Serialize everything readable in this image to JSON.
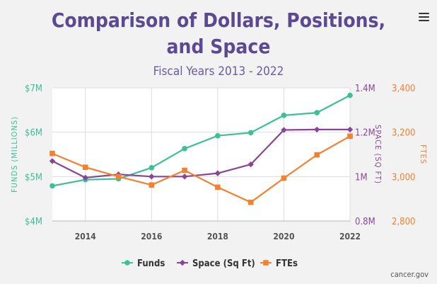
{
  "title_line1": "Comparison of Dollars, Positions,",
  "title_line2": "and Space",
  "subtitle": "Fiscal Years 2013 - 2022",
  "source": "cancer.gov",
  "menu_icon": "hamburger-menu-icon",
  "colors": {
    "funds": "#3dbf98",
    "space": "#8b4596",
    "ftes": "#f28130",
    "title": "#5b4a92",
    "subtitle": "#6a5a9e",
    "grid": "#dddddd",
    "tick": "#555555",
    "background": "#f2f2f2",
    "plot": "#ffffff"
  },
  "chart_data": {
    "type": "line",
    "title": "Comparison of Dollars, Positions, and Space",
    "subtitle": "Fiscal Years 2013 - 2022",
    "x": [
      2013,
      2014,
      2015,
      2016,
      2017,
      2018,
      2019,
      2020,
      2021,
      2022
    ],
    "x_ticks": [
      "2014",
      "2016",
      "2018",
      "2020",
      "2022"
    ],
    "axes": {
      "funds": {
        "label": "FUNDS (MILLIONS)",
        "side": "left",
        "ylim": [
          4,
          7
        ],
        "ticks": [
          4,
          5,
          6,
          7
        ],
        "tick_labels": [
          "$4M",
          "$5M",
          "$6M",
          "$7M"
        ]
      },
      "space": {
        "label": "SPACE (SQ FT)",
        "side": "right",
        "ylim": [
          0.8,
          1.4
        ],
        "ticks": [
          0.8,
          1.0,
          1.2,
          1.4
        ],
        "tick_labels": [
          "0.8M",
          "1M",
          "1.2M",
          "1.4M"
        ]
      },
      "ftes": {
        "label": "FTES",
        "side": "right-outer",
        "ylim": [
          2800,
          3400
        ],
        "ticks": [
          2800,
          3000,
          3200,
          3400
        ],
        "tick_labels": [
          "2,800",
          "3,000",
          "3,200",
          "3,400"
        ]
      }
    },
    "series": [
      {
        "name": "Funds",
        "axis": "funds",
        "marker": "circle",
        "values": [
          4.79,
          4.93,
          4.95,
          5.2,
          5.63,
          5.92,
          5.99,
          6.38,
          6.44,
          6.83
        ]
      },
      {
        "name": "Space (Sq Ft)",
        "axis": "space",
        "marker": "diamond",
        "values": [
          1.07,
          0.995,
          1.01,
          1.0,
          1.0,
          1.015,
          1.055,
          1.21,
          1.212,
          1.212
        ]
      },
      {
        "name": "FTEs",
        "axis": "ftes",
        "marker": "square",
        "values": [
          3104,
          3042,
          3000,
          2962,
          3028,
          2952,
          2884,
          2993,
          3098,
          3182
        ]
      }
    ],
    "grid": true,
    "legend": "bottom-center"
  }
}
